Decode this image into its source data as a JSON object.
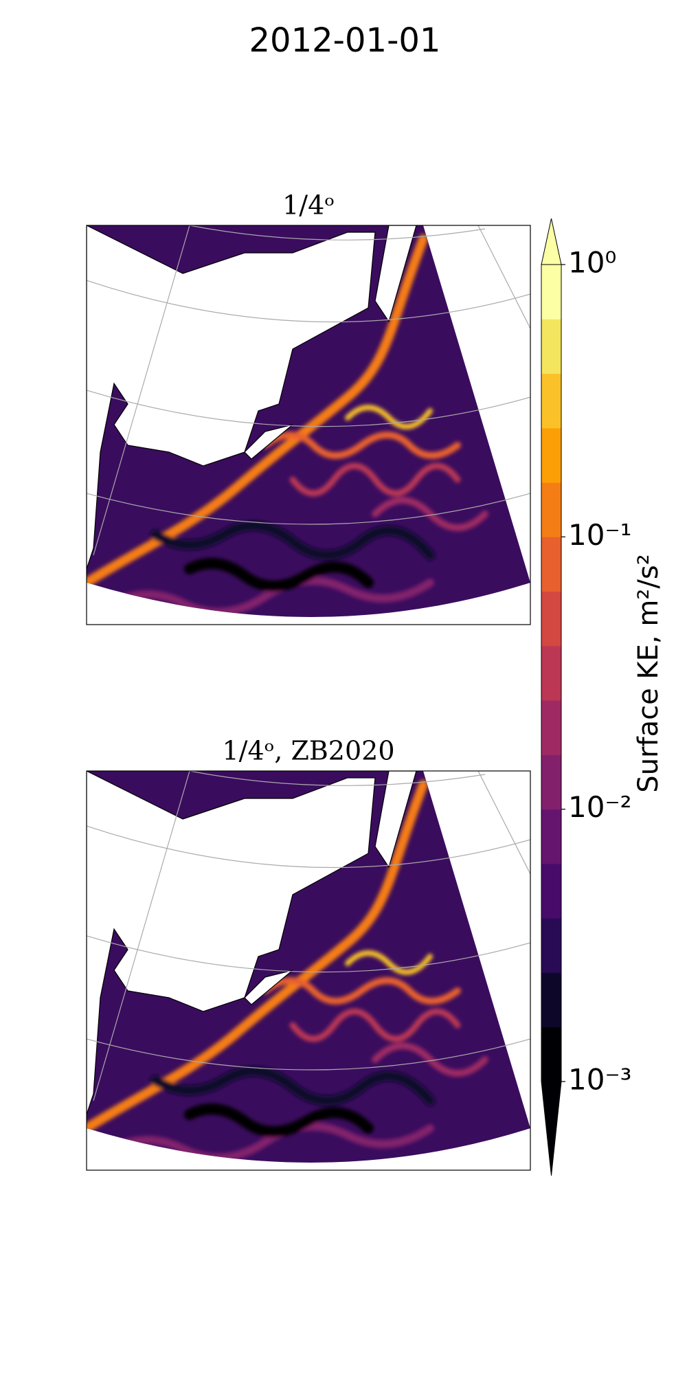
{
  "chart_data": {
    "type": "map",
    "title": "2012-01-01",
    "panels": [
      {
        "title": "1/4ᵒ"
      },
      {
        "title": "1/4ᵒ, ZB2020"
      }
    ],
    "colorbar": {
      "label": "Surface KE, m²/s²",
      "scale": "log",
      "lim": [
        0.001,
        1
      ],
      "ticks": [
        {
          "value": 1,
          "label": "10⁰"
        },
        {
          "value": 0.1,
          "label": "10⁻¹"
        },
        {
          "value": 0.01,
          "label": "10⁻²"
        },
        {
          "value": 0.001,
          "label": "10⁻³"
        }
      ],
      "colors": [
        "#000004",
        "#0d0829",
        "#280b54",
        "#480b6a",
        "#65156e",
        "#82206c",
        "#9f2a63",
        "#bb3754",
        "#d44842",
        "#e8602d",
        "#f57d15",
        "#fc9f07",
        "#fac228",
        "#f3e55d",
        "#fcffa4"
      ]
    }
  }
}
